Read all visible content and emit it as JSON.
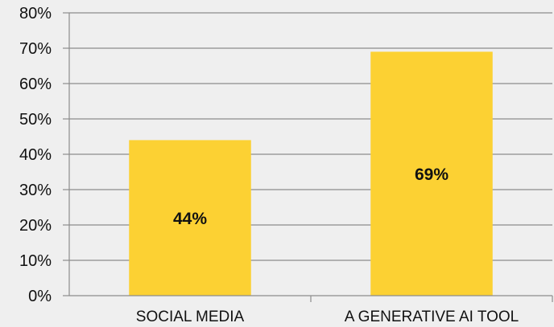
{
  "chart_data": {
    "type": "bar",
    "categories": [
      "SOCIAL MEDIA",
      "A GENERATIVE AI TOOL"
    ],
    "values": [
      44,
      69
    ],
    "data_labels": [
      "44%",
      "69%"
    ],
    "ylim": [
      0,
      80
    ],
    "ytick_step": 10,
    "ytick_labels": [
      "0%",
      "10%",
      "20%",
      "30%",
      "40%",
      "50%",
      "60%",
      "70%",
      "80%"
    ],
    "grid": true,
    "legend": "none",
    "colors": {
      "bar": "#fcd133",
      "background": "#efefef",
      "grid": "#8c8c8c"
    }
  }
}
